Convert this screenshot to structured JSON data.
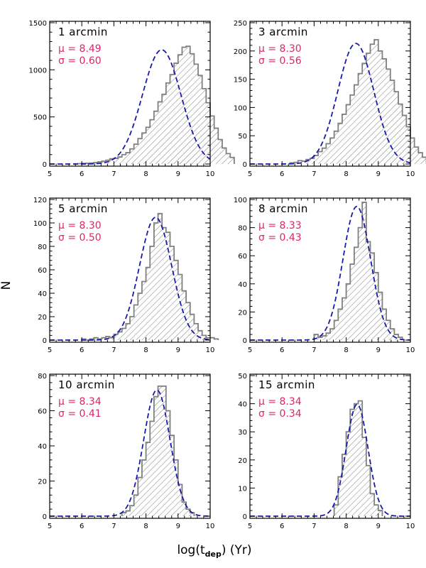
{
  "figure": {
    "ylabel": "N",
    "xlabel_prefix": "log(t",
    "xlabel_sub": "dep",
    "xlabel_suffix": ")  (Yr)",
    "colors": {
      "histogram": "#808080",
      "fit": "#1a1aa8",
      "stats": "#e0246b",
      "hatch": "#555555"
    }
  },
  "chart_data": [
    {
      "type": "bar",
      "title": "1 arcmin",
      "mu": "8.49",
      "sigma": "0.60",
      "mu_label": "μ  =  8.49",
      "sigma_label": "σ  =  0.60",
      "xlim": [
        5,
        10
      ],
      "ylim": [
        0,
        1500
      ],
      "xticks": [
        5,
        6,
        7,
        8,
        9,
        10
      ],
      "yticks": [
        0,
        500,
        1000,
        1500
      ],
      "bin_width": 0.125,
      "bin_start": 5.75,
      "values": [
        2,
        4,
        6,
        8,
        10,
        16,
        22,
        30,
        40,
        55,
        60,
        75,
        100,
        120,
        160,
        210,
        270,
        330,
        390,
        470,
        560,
        660,
        740,
        860,
        950,
        1070,
        1160,
        1240,
        1250,
        1170,
        1060,
        940,
        800,
        650,
        510,
        380,
        260,
        170,
        110,
        70
      ]
    },
    {
      "type": "bar",
      "title": "3 arcmin",
      "mu": "8.30",
      "sigma": "0.56",
      "mu_label": "μ  =  8.30",
      "sigma_label": "σ  =  0.56",
      "xlim": [
        5,
        10
      ],
      "ylim": [
        0,
        250
      ],
      "xticks": [
        5,
        6,
        7,
        8,
        9,
        10
      ],
      "yticks": [
        0,
        50,
        100,
        150,
        200,
        250
      ],
      "bin_width": 0.125,
      "bin_start": 6.25,
      "values": [
        2,
        3,
        6,
        5,
        8,
        10,
        15,
        22,
        28,
        36,
        46,
        58,
        72,
        88,
        105,
        122,
        140,
        160,
        178,
        196,
        212,
        220,
        200,
        186,
        168,
        148,
        128,
        106,
        86,
        66,
        46,
        30,
        20,
        12
      ]
    },
    {
      "type": "bar",
      "title": "5 arcmin",
      "mu": "8.30",
      "sigma": "0.50",
      "mu_label": "μ  =  8.30",
      "sigma_label": "σ  =  0.50",
      "xlim": [
        5,
        10
      ],
      "ylim": [
        0,
        120
      ],
      "xticks": [
        5,
        6,
        7,
        8,
        9,
        10
      ],
      "yticks": [
        0,
        20,
        40,
        60,
        80,
        100,
        120
      ],
      "bin_width": 0.125,
      "bin_start": 6.0,
      "values": [
        1,
        0,
        1,
        2,
        1,
        2,
        3,
        2,
        5,
        7,
        10,
        14,
        20,
        30,
        40,
        50,
        62,
        80,
        100,
        108,
        96,
        92,
        80,
        68,
        56,
        42,
        32,
        22,
        14,
        8,
        4,
        2,
        2,
        1
      ]
    },
    {
      "type": "bar",
      "title": "8 arcmin",
      "mu": "8.33",
      "sigma": "0.43",
      "mu_label": "μ  =  8.33",
      "sigma_label": "σ  =  0.43",
      "xlim": [
        5,
        10
      ],
      "ylim": [
        0,
        100
      ],
      "xticks": [
        5,
        6,
        7,
        8,
        9,
        10
      ],
      "yticks": [
        0,
        20,
        40,
        60,
        80,
        100
      ],
      "bin_width": 0.125,
      "bin_start": 7.0,
      "values": [
        4,
        2,
        3,
        5,
        8,
        14,
        22,
        30,
        40,
        54,
        66,
        80,
        98,
        70,
        62,
        48,
        34,
        22,
        14,
        8,
        4,
        2
      ]
    },
    {
      "type": "bar",
      "title": "10 arcmin",
      "mu": "8.34",
      "sigma": "0.41",
      "mu_label": "μ  =  8.34",
      "sigma_label": "σ  =  0.41",
      "xlim": [
        5,
        10
      ],
      "ylim": [
        0,
        80
      ],
      "xticks": [
        5,
        6,
        7,
        8,
        9,
        10
      ],
      "yticks": [
        0,
        20,
        40,
        60,
        80
      ],
      "bin_width": 0.125,
      "bin_start": 7.25,
      "values": [
        2,
        3,
        6,
        12,
        22,
        32,
        42,
        54,
        68,
        74,
        74,
        60,
        46,
        32,
        18,
        8,
        4,
        2
      ]
    },
    {
      "type": "bar",
      "title": "15 arcmin",
      "mu": "8.34",
      "sigma": "0.34",
      "mu_label": "μ  =  8.34",
      "sigma_label": "σ  =  0.34",
      "xlim": [
        5,
        10
      ],
      "ylim": [
        0,
        50
      ],
      "xticks": [
        5,
        6,
        7,
        8,
        9,
        10
      ],
      "yticks": [
        0,
        10,
        20,
        30,
        40,
        50
      ],
      "bin_width": 0.125,
      "bin_start": 7.625,
      "values": [
        4,
        14,
        22,
        30,
        38,
        40,
        41,
        28,
        18,
        8,
        4,
        2
      ]
    }
  ]
}
